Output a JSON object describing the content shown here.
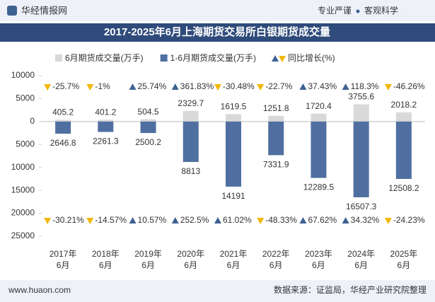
{
  "header": {
    "brand": "华经情报网",
    "slogan_left": "专业严谨",
    "slogan_right": "客观科学"
  },
  "footer": {
    "site": "www.huaon.com",
    "source": "数据来源：证监局，华经产业研究院整理"
  },
  "chart_data": {
    "type": "bar",
    "title": "2017-2025年6月上海期货交易所白银期货成交量",
    "categories": [
      "2017年6月",
      "2018年6月",
      "2019年6月",
      "2020年6月",
      "2021年6月",
      "2022年6月",
      "2023年6月",
      "2024年6月",
      "2025年6月"
    ],
    "series": [
      {
        "name": "6月期货成交量(万手)",
        "color": "#d9d9d9",
        "values": [
          405.2,
          401.2,
          504.5,
          2329.7,
          1619.5,
          1251.8,
          1720.4,
          3755.6,
          2018.2
        ],
        "growth": [
          -25.7,
          -1,
          25.74,
          361.83,
          -30.48,
          -22.7,
          37.43,
          118.3,
          -46.26
        ],
        "growth_labels": [
          "-25.7%",
          "-1%",
          "25.74%",
          "361.83%",
          "-30.48%",
          "-22.7%",
          "37.43%",
          "118.3%",
          "-46.26%"
        ]
      },
      {
        "name": "1-6月期货成交量(万手)",
        "color": "#4e6f9f",
        "values": [
          -2646.8,
          -2261.3,
          -2500.2,
          -8813,
          -14191,
          -7331.9,
          -12289.5,
          -16507.3,
          -12508.2
        ],
        "value_labels": [
          "2646.8",
          "2261.3",
          "2500.2",
          "8813",
          "14191",
          "7331.9",
          "12289.5",
          "16507.3",
          "12508.2"
        ],
        "growth": [
          -30.21,
          -14.57,
          10.57,
          252.5,
          61.02,
          -48.33,
          67.62,
          34.32,
          -24.23
        ],
        "growth_labels": [
          "-30.21%",
          "-14.57%",
          "10.57%",
          "252.5%",
          "61.02%",
          "-48.33%",
          "67.62%",
          "34.32%",
          "-24.23%"
        ]
      }
    ],
    "growth_name": "同比增长(%)",
    "up_color": "#3d6190",
    "down_color": "#f2b705",
    "ylim": [
      -25000,
      10000
    ],
    "yticks": [
      {
        "value": -25000,
        "label": "25000"
      },
      {
        "value": -20000,
        "label": "20000"
      },
      {
        "value": -15000,
        "label": "15000"
      },
      {
        "value": -10000,
        "label": "10000"
      },
      {
        "value": -5000,
        "label": "5000"
      },
      0,
      5000,
      10000
    ],
    "grid": false
  }
}
